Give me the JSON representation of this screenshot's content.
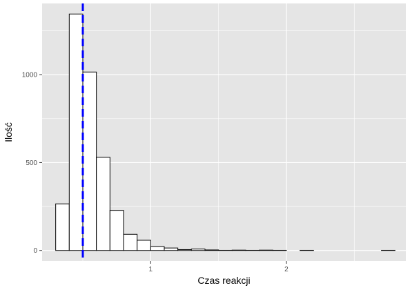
{
  "chart_data": {
    "type": "bar",
    "subtype": "histogram",
    "xlabel": "Czas reakcji",
    "ylabel": "Ilość",
    "x_ticks": [
      1,
      2
    ],
    "y_ticks": [
      0,
      500,
      1000
    ],
    "xlim": [
      0.2,
      2.88
    ],
    "ylim": [
      -60,
      1405
    ],
    "bin_width": 0.1,
    "bins_start": [
      0.3,
      0.4,
      0.5,
      0.6,
      0.7,
      0.8,
      0.9,
      1.0,
      1.1,
      1.2,
      1.3,
      1.4,
      1.5,
      1.6,
      1.7,
      1.8,
      1.9,
      2.0,
      2.1,
      2.2,
      2.3,
      2.4,
      2.5,
      2.6,
      2.7
    ],
    "values": [
      265,
      1345,
      1015,
      530,
      228,
      92,
      58,
      22,
      14,
      5,
      8,
      3,
      1,
      2,
      1,
      2,
      1,
      0,
      1,
      0,
      0,
      0,
      0,
      0,
      1
    ],
    "vline": {
      "x": 0.5,
      "style": "dashed",
      "color": "#0000ff"
    },
    "grid": true,
    "colors": {
      "panel_background": "#e5e5e5",
      "grid": "#ffffff",
      "bar_fill": "#ffffff",
      "bar_stroke": "#000000"
    }
  }
}
